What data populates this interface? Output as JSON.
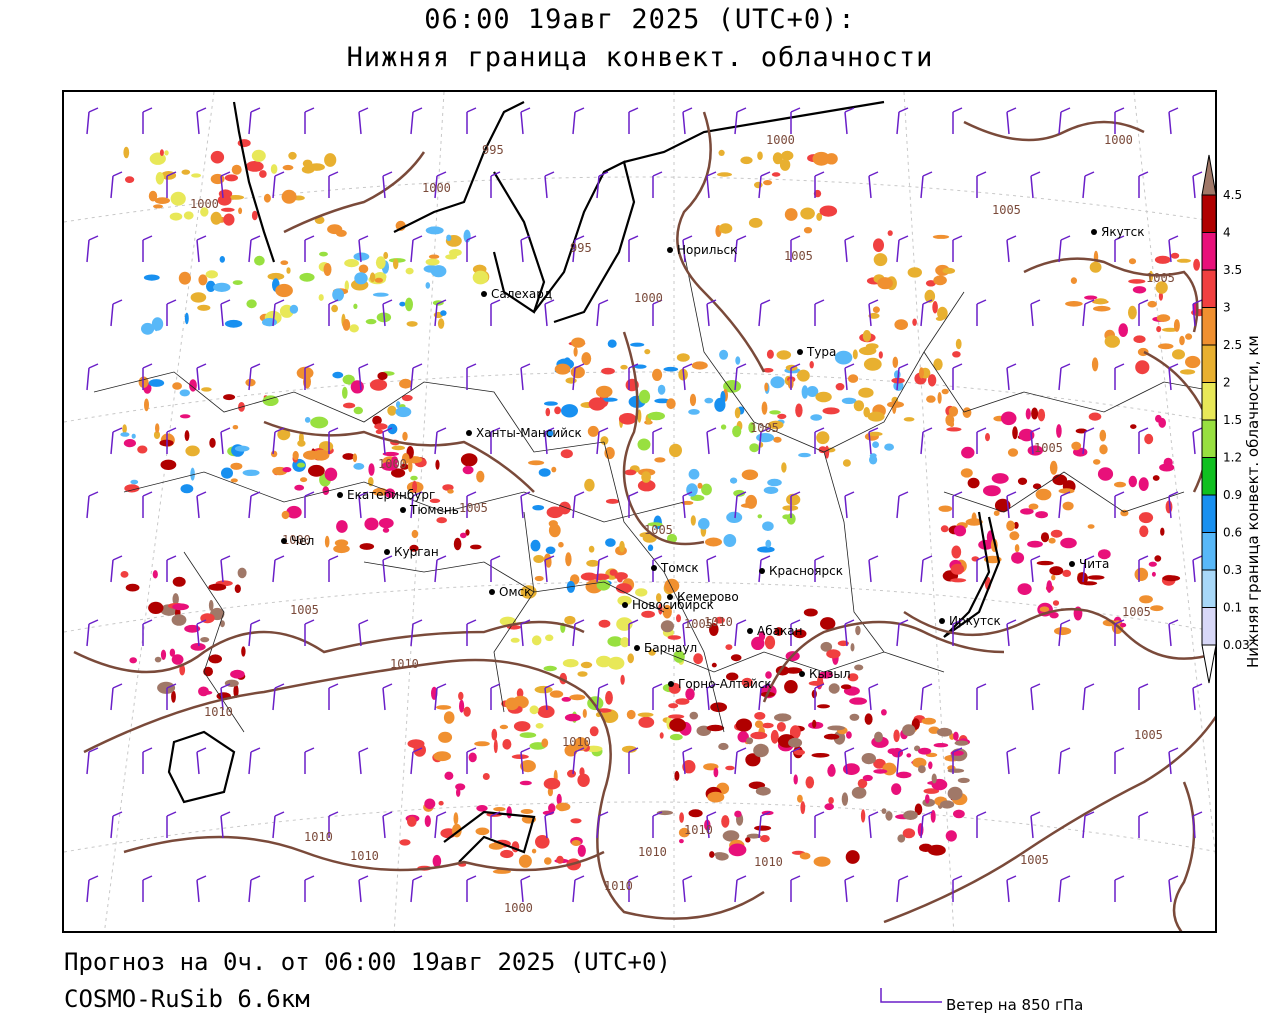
{
  "header": {
    "title_line1": "06:00 19авг 2025 (UTC+0):",
    "title_line2": "Нижняя граница конвект. облачности"
  },
  "footer": {
    "forecast": "Прогноз на 0ч. от 06:00 19авг 2025 (UTC+0)",
    "model": "COSMO-RuSib 6.6км",
    "wind_legend": "Ветер на 850 гПа"
  },
  "colorbar": {
    "title": "Нижняя граница конвект. облачности, км",
    "levels": [
      "0.03",
      "0.1",
      "0.3",
      "0.6",
      "0.9",
      "1.2",
      "1.5",
      "2",
      "2.5",
      "3",
      "3.5",
      "4",
      "4.5"
    ],
    "colors": [
      "#d8d8f8",
      "#a8d8f8",
      "#58b8f8",
      "#1890f0",
      "#10c020",
      "#98e040",
      "#e8e858",
      "#e8b030",
      "#f09030",
      "#f04040",
      "#e8107a",
      "#b00000",
      "#a07868"
    ]
  },
  "cities": [
    {
      "name": "Норильск"
    },
    {
      "name": "Салехард"
    },
    {
      "name": "Якутск"
    },
    {
      "name": "Тура"
    },
    {
      "name": "Ханты-Мансийск"
    },
    {
      "name": "Екатеринбург"
    },
    {
      "name": "Тюмень"
    },
    {
      "name": "Чел"
    },
    {
      "name": "Курган"
    },
    {
      "name": "Омск"
    },
    {
      "name": "Новосибирск"
    },
    {
      "name": "Томск"
    },
    {
      "name": "Кемерово"
    },
    {
      "name": "Красноярск"
    },
    {
      "name": "Барнаул"
    },
    {
      "name": "Абакан"
    },
    {
      "name": "Горно-Алтайск"
    },
    {
      "name": "Кызыл"
    },
    {
      "name": "Иркутск"
    },
    {
      "name": "Чита"
    }
  ],
  "isobar_labels": [
    "995",
    "1000",
    "1000",
    "995",
    "1000",
    "1005",
    "1000",
    "1005",
    "1000",
    "1005",
    "1005",
    "1005",
    "1000",
    "1005",
    "1005",
    "1000",
    "1005",
    "1005",
    "1005",
    "1010",
    "1010",
    "1010",
    "1010",
    "1010",
    "1010",
    "1010",
    "1010",
    "1010",
    "1000",
    "1005",
    "1005",
    "1010"
  ]
}
